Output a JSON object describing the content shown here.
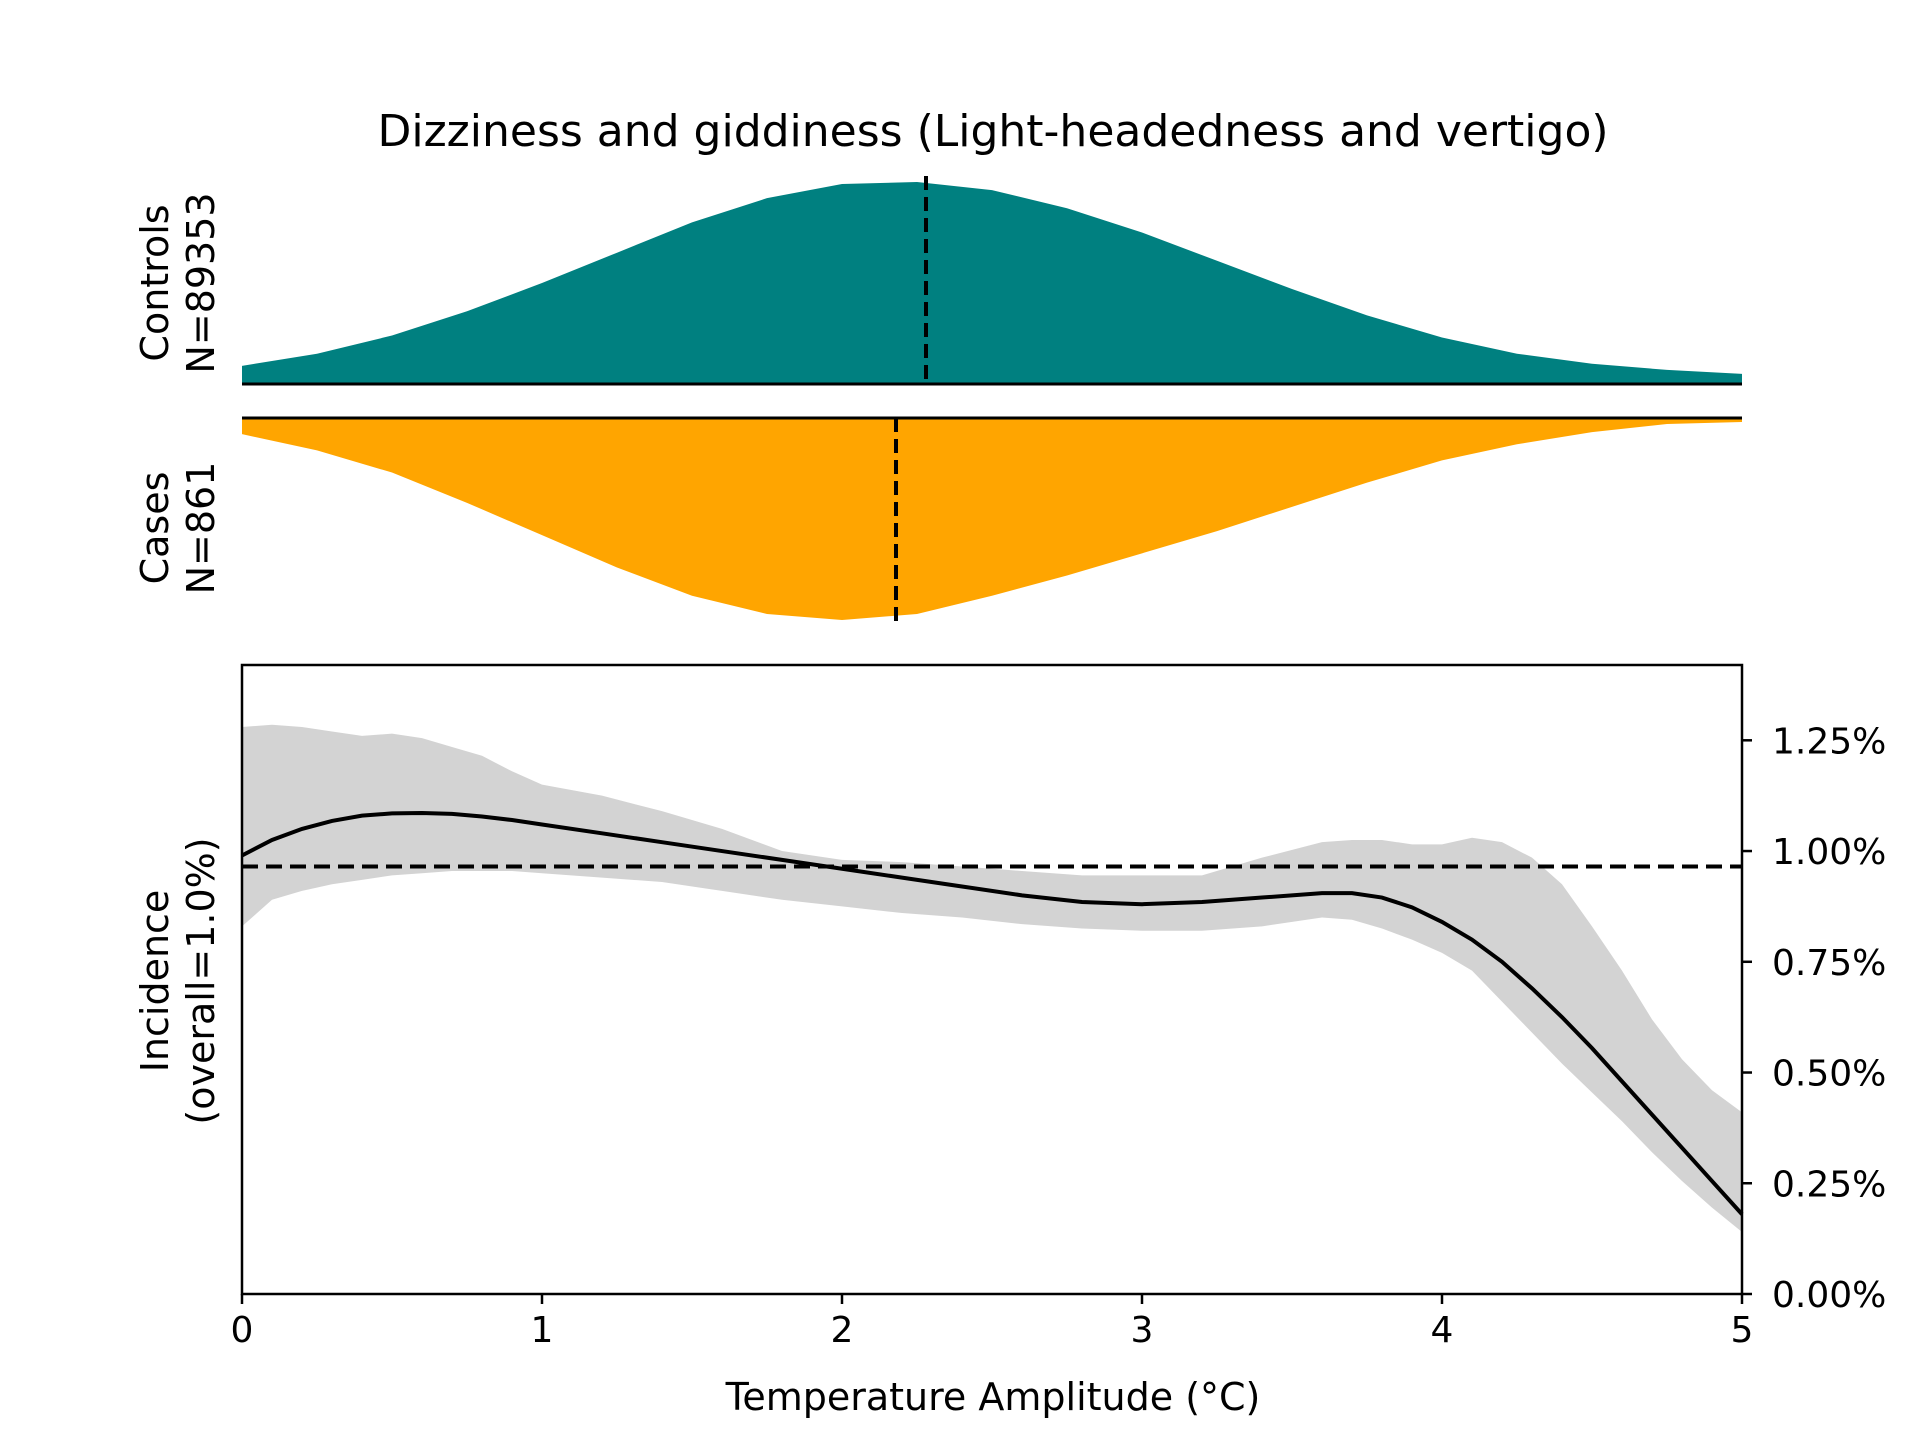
{
  "colors": {
    "controls": "#008080",
    "cases": "#FFA500",
    "ci_band": "#D3D3D3",
    "line": "#000000"
  },
  "chart_data": {
    "type": "area",
    "title": "Dizziness and giddiness (Light-headedness and vertigo)",
    "controls": {
      "label_line1": "Controls",
      "label_line2": "N=89353",
      "x": [
        0,
        0.25,
        0.5,
        0.75,
        1.0,
        1.25,
        1.5,
        1.75,
        2.0,
        2.25,
        2.5,
        2.75,
        3.0,
        3.25,
        3.5,
        3.75,
        4.0,
        4.25,
        4.5,
        4.75,
        5.0
      ],
      "density": [
        0.09,
        0.15,
        0.24,
        0.36,
        0.5,
        0.65,
        0.8,
        0.92,
        0.99,
        1.0,
        0.96,
        0.87,
        0.75,
        0.61,
        0.47,
        0.34,
        0.23,
        0.15,
        0.1,
        0.07,
        0.05
      ],
      "marker_x": 2.28
    },
    "cases": {
      "label_line1": "Cases",
      "label_line2": "N=861",
      "x": [
        0,
        0.25,
        0.5,
        0.75,
        1.0,
        1.25,
        1.5,
        1.75,
        2.0,
        2.25,
        2.5,
        2.75,
        3.0,
        3.25,
        3.5,
        3.75,
        4.0,
        4.25,
        4.5,
        4.75,
        5.0
      ],
      "density": [
        0.08,
        0.16,
        0.27,
        0.42,
        0.58,
        0.74,
        0.88,
        0.97,
        1.0,
        0.97,
        0.88,
        0.78,
        0.67,
        0.56,
        0.44,
        0.32,
        0.21,
        0.13,
        0.07,
        0.03,
        0.02
      ],
      "marker_x": 2.18
    },
    "incidence": {
      "x": [
        0,
        0.1,
        0.2,
        0.3,
        0.4,
        0.5,
        0.6,
        0.7,
        0.8,
        0.9,
        1.0,
        1.2,
        1.4,
        1.6,
        1.8,
        2.0,
        2.2,
        2.4,
        2.6,
        2.8,
        3.0,
        3.2,
        3.4,
        3.6,
        3.7,
        3.8,
        3.9,
        4.0,
        4.1,
        4.2,
        4.3,
        4.4,
        4.5,
        4.6,
        4.7,
        4.8,
        4.9,
        5.0
      ],
      "y": [
        0.99,
        1.025,
        1.05,
        1.068,
        1.08,
        1.085,
        1.086,
        1.084,
        1.078,
        1.07,
        1.06,
        1.04,
        1.02,
        1.0,
        0.98,
        0.96,
        0.94,
        0.92,
        0.9,
        0.885,
        0.88,
        0.885,
        0.895,
        0.905,
        0.905,
        0.895,
        0.873,
        0.84,
        0.8,
        0.75,
        0.69,
        0.625,
        0.555,
        0.48,
        0.405,
        0.33,
        0.255,
        0.18
      ],
      "ci_lower": [
        0.83,
        0.89,
        0.91,
        0.925,
        0.935,
        0.945,
        0.95,
        0.955,
        0.955,
        0.955,
        0.95,
        0.94,
        0.93,
        0.91,
        0.89,
        0.875,
        0.86,
        0.85,
        0.835,
        0.825,
        0.82,
        0.82,
        0.83,
        0.85,
        0.845,
        0.825,
        0.8,
        0.77,
        0.73,
        0.66,
        0.59,
        0.52,
        0.455,
        0.39,
        0.32,
        0.255,
        0.195,
        0.14
      ],
      "ci_upper": [
        1.28,
        1.285,
        1.28,
        1.27,
        1.26,
        1.265,
        1.255,
        1.235,
        1.215,
        1.18,
        1.15,
        1.125,
        1.09,
        1.05,
        1.0,
        0.98,
        0.975,
        0.965,
        0.955,
        0.945,
        0.945,
        0.945,
        0.985,
        1.02,
        1.025,
        1.025,
        1.015,
        1.015,
        1.03,
        1.02,
        0.985,
        0.925,
        0.83,
        0.73,
        0.62,
        0.53,
        0.46,
        0.41
      ],
      "overall_y": 0.965,
      "ylabel_line1": "Incidence",
      "ylabel_line2": "(overall=1.0%)",
      "xlabel": "Temperature Amplitude (°C)",
      "xlim": [
        0,
        5
      ],
      "ylim": [
        0,
        1.42
      ],
      "x_ticks": [
        "0",
        "1",
        "2",
        "3",
        "4",
        "5"
      ],
      "y_ticks": [
        "0.00%",
        "0.25%",
        "0.50%",
        "0.75%",
        "1.00%",
        "1.25%"
      ]
    },
    "grid": false,
    "legend": "none"
  }
}
